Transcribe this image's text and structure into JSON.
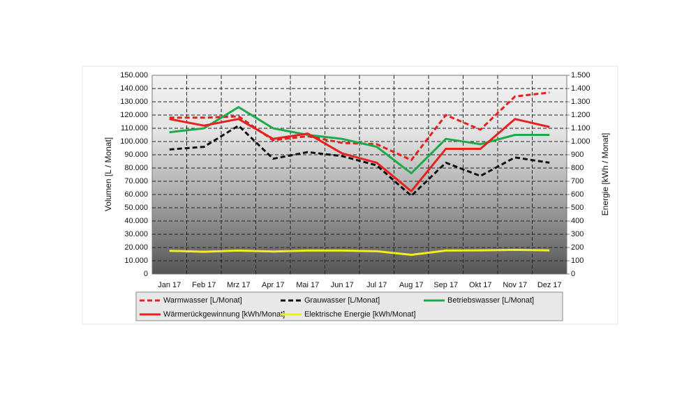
{
  "chart_data": {
    "type": "line",
    "categories": [
      "Jan 17",
      "Feb 17",
      "Mrz 17",
      "Apr 17",
      "Mai 17",
      "Jun 17",
      "Jul 17",
      "Aug 17",
      "Sep 17",
      "Okt 17",
      "Nov 17",
      "Dez 17"
    ],
    "y_label": "Volumen [L / Monat]",
    "y2_label": "Energie [kWh / Monat]",
    "ylim": [
      0,
      150000
    ],
    "yticks": [
      0,
      {
        "value": 10000,
        "label": "10.000"
      },
      {
        "value": 20000,
        "label": "20.000"
      },
      {
        "value": 30000,
        "label": "30.000"
      },
      {
        "value": 40000,
        "label": "40.000"
      },
      {
        "value": 50000,
        "label": "50.000"
      },
      {
        "value": 60000,
        "label": "60.000"
      },
      {
        "value": 70000,
        "label": "70.000"
      },
      {
        "value": 80000,
        "label": "80.000"
      },
      {
        "value": 90000,
        "label": "90.000"
      },
      {
        "value": 100000,
        "label": "100.000"
      },
      {
        "value": 110000,
        "label": "110.000"
      },
      {
        "value": 120000,
        "label": "120.000"
      },
      {
        "value": 130000,
        "label": "130.000"
      },
      {
        "value": 140000,
        "label": "140.000"
      },
      {
        "value": 150000,
        "label": "150.000"
      }
    ],
    "y2lim": [
      0,
      1500
    ],
    "y2ticks": [
      0,
      100,
      200,
      300,
      400,
      500,
      600,
      700,
      800,
      900,
      {
        "value": 1000,
        "label": "1.000"
      },
      {
        "value": 1100,
        "label": "1.100"
      },
      {
        "value": 1200,
        "label": "1.200"
      },
      {
        "value": 1300,
        "label": "1.300"
      },
      {
        "value": 1400,
        "label": "1.400"
      },
      {
        "value": 1500,
        "label": "1.500"
      }
    ],
    "grid": true,
    "series": [
      {
        "name": "Warmwasser [L/Monat]",
        "color": "#e8201e",
        "dashed": true,
        "values": [
          118000,
          118000,
          119000,
          101000,
          104000,
          99000,
          98000,
          86000,
          120000,
          109000,
          134000,
          137000
        ]
      },
      {
        "name": "Grauwasser [L/Monat]",
        "color": "#111111",
        "dashed": true,
        "values": [
          94000,
          96000,
          112000,
          87000,
          92000,
          89000,
          82000,
          59000,
          84000,
          74000,
          88000,
          84000
        ]
      },
      {
        "name": "Betriebswasser [L/Monat]",
        "color": "#1faa4a",
        "dashed": false,
        "values": [
          107000,
          110000,
          126000,
          110000,
          105000,
          102000,
          96000,
          76000,
          102000,
          98000,
          105000,
          105000
        ]
      },
      {
        "name": "Wärmerückgewinnung [kWh/Monat]",
        "color": "#e8201e",
        "dashed": false,
        "axis": "y2",
        "values": [
          1170,
          1120,
          1170,
          1020,
          1060,
          910,
          840,
          625,
          945,
          945,
          1170,
          1110
        ]
      },
      {
        "name": "Elektrische Energie [kWh/Monat]",
        "color": "#f2ee1a",
        "dashed": false,
        "axis": "y2",
        "values": [
          175,
          168,
          177,
          170,
          177,
          177,
          172,
          145,
          177,
          178,
          182,
          178
        ]
      }
    ]
  }
}
